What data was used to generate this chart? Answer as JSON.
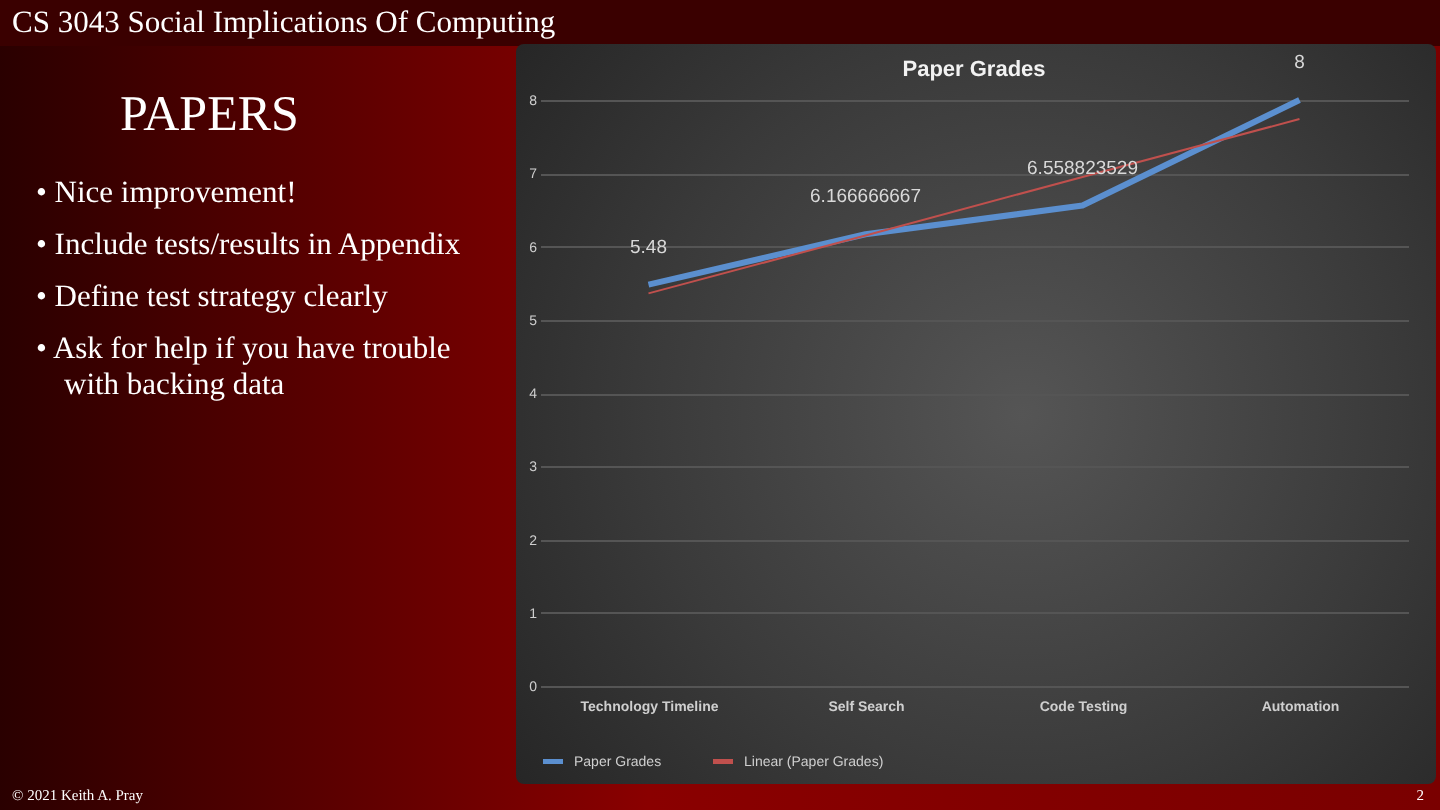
{
  "chart_data": {
    "type": "line",
    "title": "Paper Grades",
    "categories": [
      "Technology Timeline",
      "Self Search",
      "Code Testing",
      "Automation"
    ],
    "series": [
      {
        "name": "Paper Grades",
        "color": "#5b8fcf",
        "values": [
          5.48,
          6.166666667,
          6.558823529,
          8
        ],
        "data_labels": true
      },
      {
        "name": "Linear (Paper Grades)",
        "color": "#c0504d",
        "values": [
          5.36,
          6.15,
          6.95,
          7.74
        ]
      }
    ],
    "ylim": [
      0,
      8
    ],
    "yticks": [
      0,
      1,
      2,
      3,
      4,
      5,
      6,
      7,
      8
    ],
    "grid": "y",
    "legend": "bottom",
    "marker": "none",
    "line_style": "solid",
    "annotations": [
      "CS 3043 Social Implications Of Computing",
      "PAPERS",
      "• Nice improvement!",
      "• Include tests/results in Appendix",
      "• Define test strategy clearly",
      "• Ask for help if you have trouble with backing data",
      "© 2021 Keith A. Pray",
      "2"
    ]
  }
}
